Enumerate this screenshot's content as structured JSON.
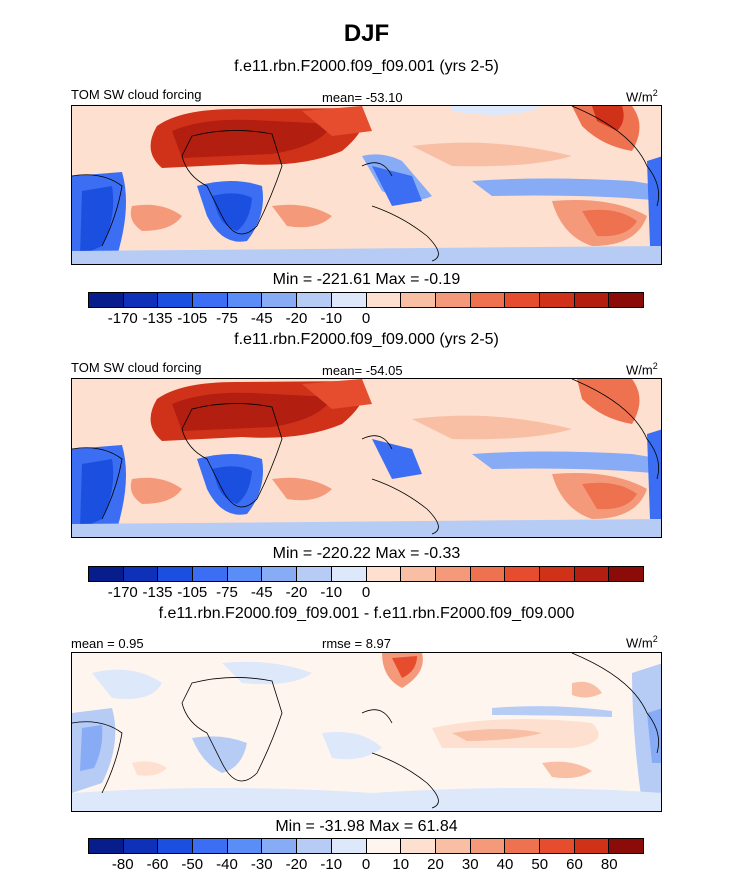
{
  "figure": {
    "title": "DJF"
  },
  "panels": [
    {
      "title": "f.e11.rbn.F2000.f09_f09.001 (yrs 2-5)",
      "left_label": "TOM SW cloud forcing",
      "center_label": "mean= -53.10",
      "units": "W/m",
      "units_sup": "2",
      "minmax": "Min = -221.61 Max =  -0.19",
      "colorbar_ticks": [
        "-170",
        "-135",
        "-105",
        "-75",
        "-45",
        "-20",
        "-10",
        "0"
      ]
    },
    {
      "title": "f.e11.rbn.F2000.f09_f09.000 (yrs 2-5)",
      "left_label": "TOM SW cloud forcing",
      "center_label": "mean= -54.05",
      "units": "W/m",
      "units_sup": "2",
      "minmax": "Min = -220.22 Max =  -0.33",
      "colorbar_ticks": [
        "-170",
        "-135",
        "-105",
        "-75",
        "-45",
        "-20",
        "-10",
        "0"
      ]
    },
    {
      "title": "f.e11.rbn.F2000.f09_f09.001 - f.e11.rbn.F2000.f09_f09.000",
      "left_label": "mean =   0.95",
      "center_label": "rmse =   8.97",
      "units": "W/m",
      "units_sup": "2",
      "minmax": "Min = -31.98 Max =  61.84",
      "colorbar_ticks": [
        "-80",
        "-60",
        "-50",
        "-40",
        "-30",
        "-20",
        "-10",
        "0",
        "10",
        "20",
        "30",
        "40",
        "50",
        "60",
        "80"
      ]
    }
  ],
  "colors": {
    "abs_scale": [
      "#081d8c",
      "#0f30b8",
      "#1b4fe0",
      "#3b6ef2",
      "#5a8df5",
      "#87abf5",
      "#b6ccf5",
      "#dde8fa",
      "#fde0cf",
      "#f9bfa5",
      "#f49a7a",
      "#ee7250",
      "#e54d2e",
      "#cf3219",
      "#b21e10",
      "#8a0b07"
    ],
    "diff_scale": [
      "#081d8c",
      "#0f30b8",
      "#1b4fe0",
      "#3b6ef2",
      "#5a8df5",
      "#87abf5",
      "#b6ccf5",
      "#dde8fa",
      "#fff5ef",
      "#fde0cf",
      "#f9bfa5",
      "#f49a7a",
      "#ee7250",
      "#e54d2e",
      "#cf3219",
      "#8a0b07"
    ]
  }
}
